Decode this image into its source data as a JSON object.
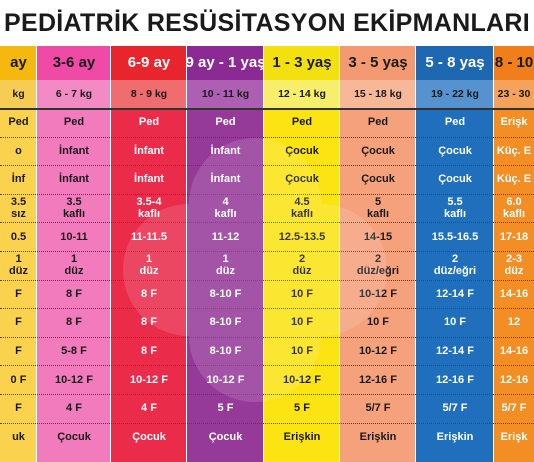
{
  "title": "PEDİATRİK RESÜSİTASYON EKİPMANLARI",
  "columns": [
    {
      "age": "ay",
      "weight": "kg",
      "cells": [
        "Ped",
        "o",
        "İnf",
        "3.5|sız",
        "0.5",
        "1|düz",
        "F",
        "F",
        "F",
        "0 F",
        "F",
        "uk"
      ]
    },
    {
      "age": "3-6 ay",
      "weight": "6 - 7 kg",
      "cells": [
        "Ped",
        "İnfant",
        "İnfant",
        "3.5|kaflı",
        "10-11",
        "1|düz",
        "8 F",
        "8 F",
        "5-8 F",
        "10-12 F",
        "4 F",
        "Çocuk"
      ]
    },
    {
      "age": "6-9 ay",
      "weight": "8 - 9 kg",
      "cells": [
        "Ped",
        "İnfant",
        "İnfant",
        "3.5-4|kaflı",
        "11-11.5",
        "1|düz",
        "8 F",
        "8 F",
        "8 F",
        "10-12 F",
        "4 F",
        "Çocuk"
      ]
    },
    {
      "age": "9 ay - 1 yaş",
      "weight": "10 - 11 kg",
      "cells": [
        "Ped",
        "İnfant",
        "İnfant",
        "4|kaflı",
        "11-12",
        "1|düz",
        "8-10 F",
        "8-10 F",
        "8-10 F",
        "10-12 F",
        "5 F",
        "Çocuk"
      ]
    },
    {
      "age": "1 - 3 yaş",
      "weight": "12 - 14 kg",
      "cells": [
        "Ped",
        "Çocuk",
        "Çocuk",
        "4.5|kaflı",
        "12.5-13.5",
        "2|düz",
        "10 F",
        "10 F",
        "10 F",
        "10-12 F",
        "5 F",
        "Erişkin"
      ]
    },
    {
      "age": "3 - 5 yaş",
      "weight": "15 - 18 kg",
      "cells": [
        "Ped",
        "Çocuk",
        "Çocuk",
        "5|kaflı",
        "14-15",
        "2|düz/eğri",
        "10-12 F",
        "10 F",
        "10-12 F",
        "12-16 F",
        "5/7 F",
        "Erişkin"
      ]
    },
    {
      "age": "5 - 8 yaş",
      "weight": "19 - 22 kg",
      "cells": [
        "Ped",
        "Çocuk",
        "Çocuk",
        "5.5|kaflı",
        "15.5-16.5",
        "2|düz/eğri",
        "12-14 F",
        "10 F",
        "12-14 F",
        "12-16 F",
        "5/7 F",
        "Erişkin"
      ]
    },
    {
      "age": "8 - 10",
      "weight": "23 - 30",
      "cells": [
        "Erişk",
        "Küç. E",
        "Küç. E",
        "6.0|kaflı",
        "17-18",
        "2-3|düz",
        "14-16",
        "12",
        "14-16",
        "12-16",
        "5/7 F",
        "Erişk"
      ]
    }
  ],
  "colors": {
    "header": [
      "#f5b80f",
      "#ee4aa6",
      "#e8242c",
      "#8a2a92",
      "#f2e011",
      "#f39a72",
      "#1e68b1",
      "#f07e1a"
    ],
    "weight": [
      "#f7cc55",
      "#f28bc3",
      "#ef6c6f",
      "#ac5fb3",
      "#f7ee6b",
      "#f7b898",
      "#5592cf",
      "#f5a35b"
    ],
    "body": [
      "#fad24d",
      "#f27bbd",
      "#ea2b4a",
      "#963a9a",
      "#fbe412",
      "#f5a17c",
      "#1f6fbc",
      "#f28e24"
    ],
    "headerText": [
      "#1a1a1a",
      "#1a1a1a",
      "#ffffff",
      "#ffffff",
      "#1a1a1a",
      "#1a1a1a",
      "#ffffff",
      "#1a1a1a"
    ],
    "bodyText": [
      "#1a1a1a",
      "#1a1a1a",
      "#ffffff",
      "#ffffff",
      "#1a1a1a",
      "#1a1a1a",
      "#ffffff",
      "#ffffff"
    ]
  }
}
